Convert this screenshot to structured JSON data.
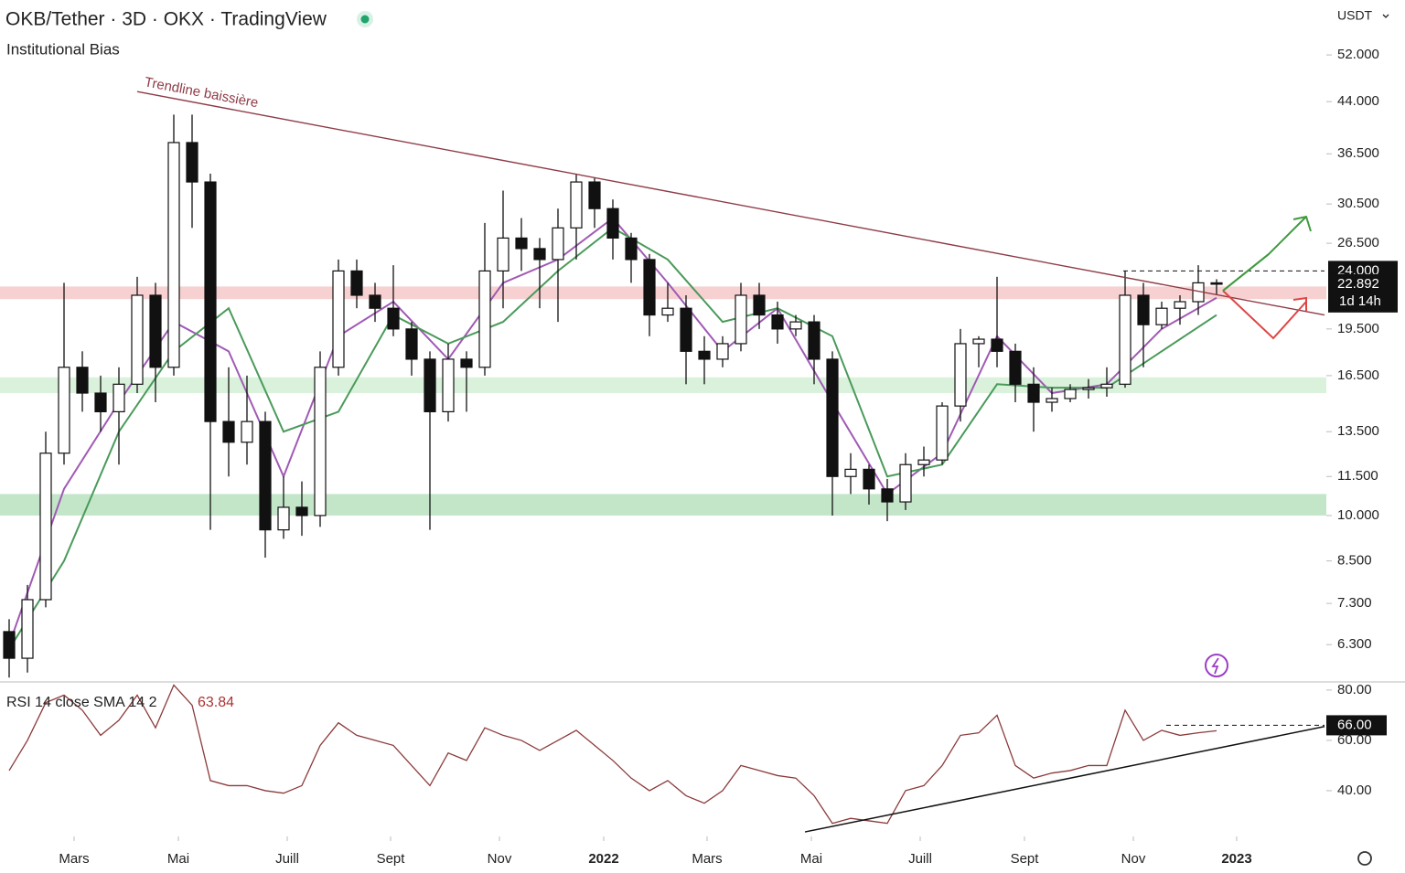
{
  "chart_data": [
    {
      "type": "candlestick",
      "title": "OKB/Tether · 3D · OKX · TradingView",
      "subtitle": "Institutional Bias",
      "currency": "USDT",
      "log_scale": true,
      "open": [
        6.6,
        6.0,
        7.4,
        12.5,
        17,
        15.5,
        14.5,
        16,
        22,
        17,
        38,
        33,
        14,
        13,
        14,
        9.5,
        10.3,
        10,
        17,
        24,
        22,
        21,
        19.5,
        17.5,
        14.5,
        17.5,
        17,
        24,
        27,
        26,
        25,
        28,
        33,
        30,
        27,
        25,
        20.5,
        21,
        18,
        17.5,
        18.5,
        22,
        20.5,
        19.5,
        20,
        17.5,
        11.5,
        11.8,
        11,
        10.5,
        12,
        12.2,
        14.8,
        18.5,
        18.8,
        18,
        16,
        15,
        15.2,
        15.7,
        15.8,
        16,
        22,
        19.8,
        21,
        21.5,
        23
      ],
      "high": [
        6.9,
        7.8,
        13.5,
        23,
        18,
        16.5,
        17,
        23.5,
        23,
        42,
        42,
        34,
        17,
        16.5,
        14.5,
        11.5,
        11.3,
        18,
        25,
        25,
        23,
        24.5,
        20,
        18,
        18.5,
        18,
        28.5,
        32,
        29,
        27,
        30,
        34,
        33.5,
        31,
        27.5,
        25.5,
        23,
        22,
        19,
        19,
        23,
        23,
        21.5,
        20.5,
        20.5,
        18,
        12.5,
        12,
        11.4,
        12.5,
        12.8,
        15,
        19.5,
        19,
        23.5,
        18.5,
        17,
        15.8,
        16,
        16.3,
        17,
        24,
        23,
        21.5,
        22,
        24.5,
        23.3
      ],
      "low": [
        5.6,
        5.7,
        7.2,
        12,
        14.5,
        13.5,
        12,
        15.5,
        15,
        16.5,
        28,
        9.5,
        11.5,
        12,
        8.6,
        9.2,
        9.3,
        9.6,
        16.5,
        21,
        20,
        19,
        16.5,
        9.5,
        14,
        14.5,
        16.5,
        21,
        24,
        21,
        20,
        25,
        28,
        25,
        23,
        19,
        20,
        16,
        16,
        17,
        18,
        19.5,
        18.5,
        19,
        16,
        10,
        10.8,
        10.4,
        9.8,
        10.2,
        11.5,
        12,
        14,
        17,
        17,
        15,
        13.5,
        14.5,
        15,
        15.2,
        15.3,
        15.8,
        17,
        19.5,
        19.8,
        20.5,
        22
      ],
      "close": [
        6.0,
        7.4,
        12.5,
        17,
        15.5,
        14.5,
        16,
        22,
        17,
        38,
        33,
        14,
        13,
        14,
        9.5,
        10.3,
        10,
        17,
        24,
        22,
        21,
        19.5,
        17.5,
        14.5,
        17.5,
        17,
        24,
        27,
        26,
        25,
        28,
        33,
        30,
        27,
        25,
        20.5,
        21,
        18,
        17.5,
        18.5,
        22,
        20.5,
        19.5,
        20,
        17.5,
        11.5,
        11.8,
        11,
        10.5,
        12,
        12.2,
        14.8,
        18.5,
        18.8,
        18,
        16,
        15,
        15.2,
        15.7,
        15.8,
        16,
        22,
        19.8,
        21,
        21.5,
        23,
        22.892
      ],
      "series": [
        {
          "color": "#a05ab4",
          "x": [
            0,
            3,
            6,
            9,
            12,
            15,
            18,
            21,
            24,
            27,
            30,
            33,
            36,
            39,
            42,
            45,
            48,
            51,
            54,
            57,
            60,
            63,
            66
          ],
          "values": [
            6.3,
            11,
            15,
            20,
            18,
            11.5,
            19,
            21.5,
            17.5,
            23,
            25,
            29,
            23,
            18,
            21,
            15,
            10.8,
            12.5,
            19,
            15.5,
            16,
            19.5,
            21.8
          ]
        },
        {
          "color": "#4a9a5a",
          "x": [
            0,
            3,
            6,
            9,
            12,
            15,
            18,
            21,
            24,
            27,
            30,
            33,
            36,
            39,
            42,
            45,
            48,
            51,
            54,
            57,
            60,
            63,
            66
          ],
          "values": [
            6.2,
            8.5,
            13.5,
            18,
            21,
            13.5,
            14.5,
            20.5,
            18.5,
            20,
            24,
            28,
            25,
            20,
            21,
            19,
            11.5,
            12,
            16,
            15.8,
            15.8,
            18,
            20.5
          ]
        }
      ],
      "zones": [
        {
          "low": 21.7,
          "high": 22.7,
          "color": "#f6c9c9"
        },
        {
          "low": 15.5,
          "high": 16.4,
          "color": "#d3eed6"
        },
        {
          "low": 10.0,
          "high": 10.8,
          "color": "#b9e2bf"
        }
      ],
      "trendline": {
        "label": "Trendline baissière",
        "x": [
          7.0,
          71.9
        ],
        "values": [
          45.6,
          20.5
        ],
        "color": "#8e3b46"
      },
      "level": {
        "value": 24,
        "label": "24.000",
        "x": [
          60.9,
          71.9
        ]
      },
      "last_price": {
        "value": 22.892,
        "label": "22.892",
        "countdown": "1d 14h"
      },
      "xlim": [
        -0.5,
        72.0
      ],
      "xticks": [
        {
          "value": 3.55,
          "label": "Mars"
        },
        {
          "value": 9.25,
          "label": "Mai"
        },
        {
          "value": 15.2,
          "label": "Juill"
        },
        {
          "value": 20.85,
          "label": "Sept"
        },
        {
          "value": 26.8,
          "label": "Nov"
        },
        {
          "value": 32.5,
          "label": "2022",
          "bold": true
        },
        {
          "value": 38.15,
          "label": "Mars"
        },
        {
          "value": 43.85,
          "label": "Mai"
        },
        {
          "value": 49.8,
          "label": "Juill"
        },
        {
          "value": 55.5,
          "label": "Sept"
        },
        {
          "value": 61.45,
          "label": "Nov"
        },
        {
          "value": 67.1,
          "label": "2023",
          "bold": true
        }
      ],
      "ylim": [
        5.53,
        63.3
      ],
      "yticks": [
        {
          "value": 52,
          "label": "52.000"
        },
        {
          "value": 44,
          "label": "44.000"
        },
        {
          "value": 36.5,
          "label": "36.500"
        },
        {
          "value": 30.5,
          "label": "30.500"
        },
        {
          "value": 26.5,
          "label": "26.500"
        },
        {
          "value": 19.5,
          "label": "19.500"
        },
        {
          "value": 16.5,
          "label": "16.500"
        },
        {
          "value": 13.5,
          "label": "13.500"
        },
        {
          "value": 11.5,
          "label": "11.500"
        },
        {
          "value": 10,
          "label": "10.000"
        },
        {
          "value": 8.5,
          "label": "8.500"
        },
        {
          "value": 7.3,
          "label": "7.300"
        },
        {
          "value": 6.3,
          "label": "6.300"
        }
      ]
    },
    {
      "type": "line",
      "title": "RSI 14 close SMA 14 2",
      "last_value": 63.84,
      "color": "#8b3a3a",
      "values": [
        48,
        60,
        75,
        78,
        72,
        62,
        68,
        78,
        65,
        82,
        74,
        44,
        42,
        42,
        40,
        39,
        42,
        58,
        67,
        62,
        60,
        58,
        50,
        42,
        55,
        52,
        65,
        62,
        60,
        56,
        60,
        64,
        58,
        52,
        45,
        40,
        44,
        38,
        35,
        40,
        50,
        48,
        46,
        45,
        38,
        27,
        29,
        28,
        27,
        40,
        42,
        50,
        62,
        63,
        70,
        50,
        45,
        47,
        48,
        50,
        50,
        72,
        60,
        64,
        62,
        63,
        63.84
      ],
      "trendline": {
        "x": [
          43.5,
          71.9
        ],
        "values": [
          23.6,
          65.5
        ]
      },
      "level": {
        "value": 66,
        "label": "66.00",
        "x": [
          63.25,
          71.9
        ]
      },
      "xlim": [
        -0.5,
        72.0
      ],
      "ylim": [
        21.8,
        83.6
      ],
      "yticks": [
        {
          "value": 80,
          "label": "80.00"
        },
        {
          "value": 60,
          "label": "60.00"
        },
        {
          "value": 40,
          "label": "40.00"
        }
      ]
    }
  ]
}
